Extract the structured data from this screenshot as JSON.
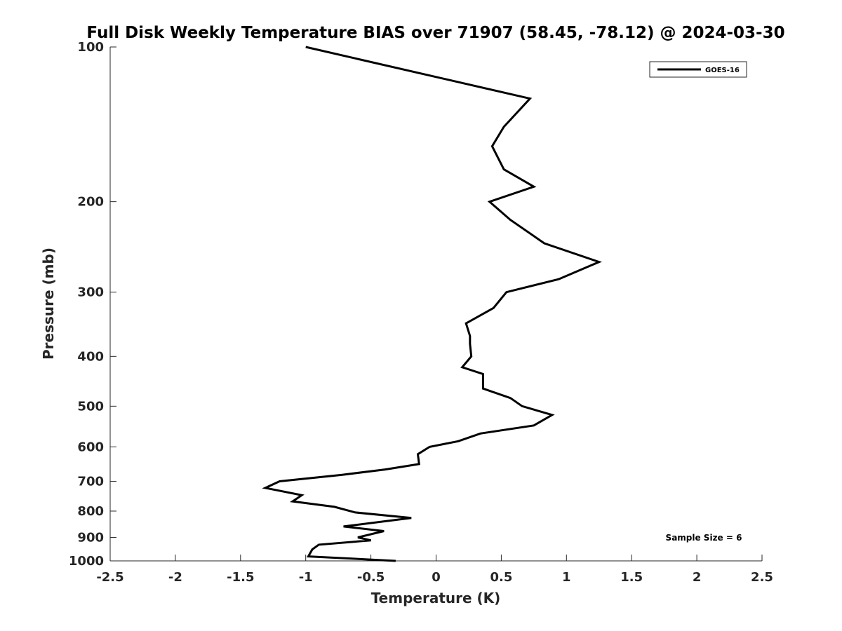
{
  "chart_data": {
    "type": "line",
    "title": "Full Disk Weekly Temperature BIAS over 71907 (58.45, -78.12) @ 2024-03-30",
    "xlabel": "Temperature (K)",
    "ylabel": "Pressure (mb)",
    "xlim": [
      -2.5,
      2.5
    ],
    "ylim": [
      100,
      1000
    ],
    "y_scale": "log",
    "y_reversed": true,
    "grid": false,
    "x_ticks": [
      -2.5,
      -2,
      -1.5,
      -1,
      -0.5,
      0,
      0.5,
      1,
      1.5,
      2,
      2.5
    ],
    "x_tick_labels": [
      "-2.5",
      "-2",
      "-1.5",
      "-1",
      "-0.5",
      "0",
      "0.5",
      "1",
      "1.5",
      "2",
      "2.5"
    ],
    "y_ticks": [
      100,
      200,
      300,
      400,
      500,
      600,
      700,
      800,
      900,
      1000
    ],
    "y_tick_labels": [
      "100",
      "200",
      "300",
      "400",
      "500",
      "600",
      "700",
      "800",
      "900",
      "1000"
    ],
    "legend": {
      "position": "top-right",
      "entries": [
        "GOES-16"
      ]
    },
    "annotation": "Sample Size = 6",
    "series": [
      {
        "name": "GOES-16",
        "color": "#000000",
        "x": [
          -1.0,
          0.72,
          0.52,
          0.43,
          0.52,
          0.75,
          0.41,
          0.57,
          0.83,
          1.25,
          0.94,
          0.54,
          0.44,
          0.23,
          0.26,
          0.26,
          0.27,
          0.2,
          0.36,
          0.36,
          0.57,
          0.66,
          0.89,
          0.75,
          0.34,
          0.17,
          -0.05,
          -0.14,
          -0.13,
          -0.39,
          -0.72,
          -1.2,
          -1.31,
          -1.03,
          -1.1,
          -0.78,
          -0.62,
          -0.19,
          -0.71,
          -0.4,
          -0.6,
          -0.5,
          -0.9,
          -0.95,
          -0.98,
          -0.31
        ],
        "y": [
          100,
          126,
          143,
          156,
          173,
          187,
          200,
          217,
          241,
          262,
          283,
          300,
          322,
          345,
          365,
          378,
          400,
          420,
          433,
          462,
          482,
          500,
          520,
          545,
          565,
          585,
          600,
          620,
          648,
          664,
          680,
          700,
          721,
          745,
          766,
          785,
          805,
          825,
          857,
          875,
          900,
          912,
          930,
          950,
          980,
          1000
        ]
      }
    ]
  }
}
